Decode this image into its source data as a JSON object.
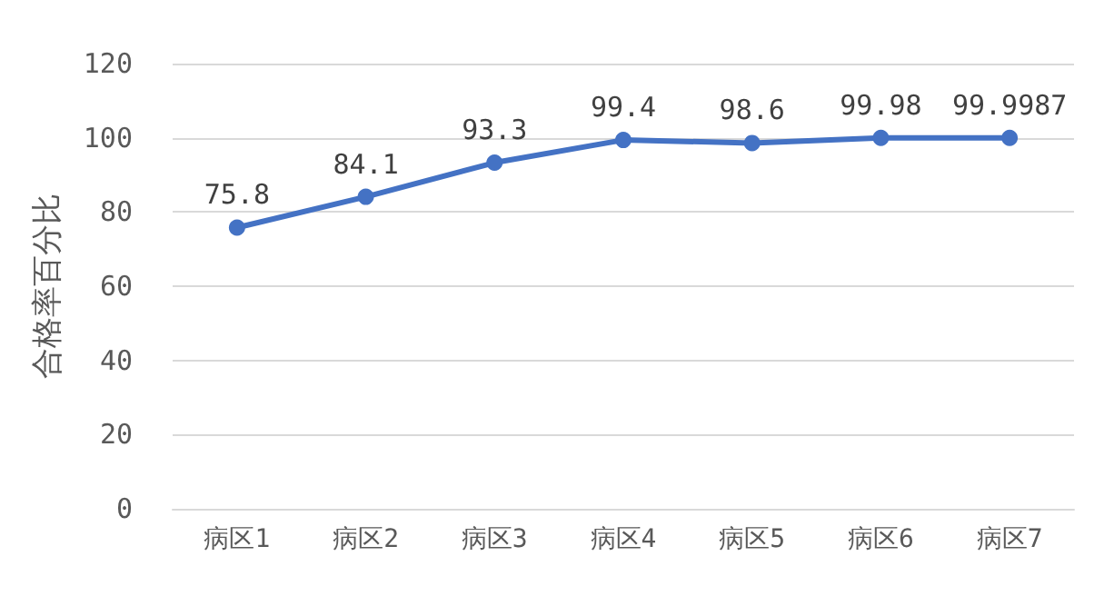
{
  "chart_data": {
    "type": "line",
    "ylabel": "合格率百分比",
    "categories": [
      "病区1",
      "病区2",
      "病区3",
      "病区4",
      "病区5",
      "病区6",
      "病区7"
    ],
    "series": [
      {
        "color": "#4472c4",
        "values": [
          75.8,
          84.1,
          93.3,
          99.4,
          98.6,
          99.98,
          99.9987
        ]
      }
    ],
    "ylim": [
      0,
      120
    ],
    "yticks": [
      0,
      20,
      40,
      60,
      80,
      100,
      120
    ],
    "grid": "y",
    "marker": "circle",
    "line_style": "solid",
    "data_labels": true
  }
}
